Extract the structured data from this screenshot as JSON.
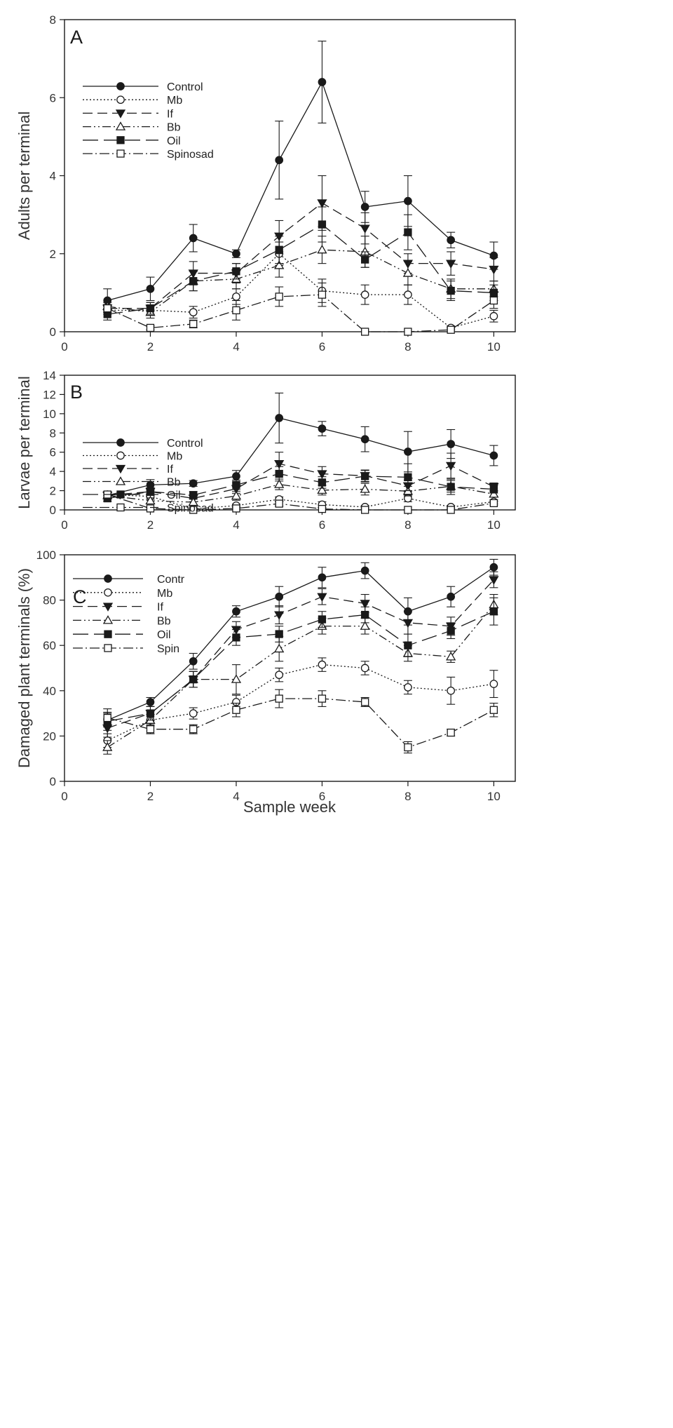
{
  "xlabel": "Sample week",
  "chart_data": [
    {
      "type": "line",
      "panel_label": "A",
      "ylabel": "Adults per terminal",
      "xlim": [
        0,
        10.5
      ],
      "ylim": [
        0,
        8
      ],
      "xticks": [
        0,
        2,
        4,
        6,
        8,
        10
      ],
      "yticks": [
        0,
        2,
        4,
        6,
        8
      ],
      "legend": [
        "Control",
        "Mb",
        "If",
        "Bb",
        "Oil",
        "Spinosad"
      ],
      "x": [
        1,
        2,
        3,
        4,
        5,
        6,
        7,
        8,
        9,
        10
      ],
      "series": [
        {
          "name": "Control",
          "values": [
            0.8,
            1.1,
            2.4,
            2.0,
            4.4,
            6.4,
            3.2,
            3.35,
            2.35,
            1.95
          ],
          "err": [
            0.3,
            0.3,
            0.35,
            0.1,
            1.0,
            1.05,
            0.4,
            0.65,
            0.2,
            0.35
          ]
        },
        {
          "name": "Mb",
          "values": [
            0.55,
            0.55,
            0.5,
            0.9,
            2.0,
            1.05,
            0.95,
            0.95,
            0.1,
            0.4
          ],
          "err": [
            0.1,
            0.1,
            0.15,
            0.2,
            0.3,
            0.3,
            0.25,
            0.25,
            0.05,
            0.15
          ]
        },
        {
          "name": "If",
          "values": [
            0.6,
            0.6,
            1.5,
            1.5,
            2.45,
            3.3,
            2.65,
            1.75,
            1.75,
            1.6
          ],
          "err": [
            0.1,
            0.15,
            0.3,
            0.25,
            0.4,
            0.7,
            0.4,
            0.25,
            0.3,
            0.3
          ]
        },
        {
          "name": "Bb",
          "values": [
            0.65,
            0.5,
            1.3,
            1.35,
            1.7,
            2.1,
            2.05,
            1.5,
            1.1,
            1.1
          ],
          "err": [
            0.1,
            0.15,
            0.25,
            0.25,
            0.3,
            0.35,
            0.4,
            0.3,
            0.25,
            0.2
          ]
        },
        {
          "name": "Oil",
          "values": [
            0.45,
            0.6,
            1.3,
            1.55,
            2.1,
            2.75,
            1.85,
            2.55,
            1.05,
            1.0
          ],
          "err": [
            0.15,
            0.15,
            0.25,
            0.2,
            0.35,
            0.45,
            0.2,
            0.45,
            0.25,
            0.2
          ]
        },
        {
          "name": "Spinosad",
          "values": [
            0.6,
            0.1,
            0.2,
            0.55,
            0.9,
            0.95,
            0.0,
            0.0,
            0.05,
            0.8
          ],
          "err": [
            0.1,
            0.05,
            0.1,
            0.25,
            0.25,
            0.3,
            0.0,
            0.0,
            0.05,
            0.2
          ]
        }
      ]
    },
    {
      "type": "line",
      "panel_label": "B",
      "ylabel": "Larvae per terminal",
      "xlim": [
        0,
        10.5
      ],
      "ylim": [
        0,
        14
      ],
      "xticks": [
        0,
        2,
        4,
        6,
        8,
        10
      ],
      "yticks": [
        0,
        2,
        4,
        6,
        8,
        10,
        12,
        14
      ],
      "legend": [
        "Control",
        "Mb",
        "If",
        "Bb",
        "Oil",
        "Spinosad"
      ],
      "x": [
        1,
        2,
        3,
        4,
        5,
        6,
        7,
        8,
        9,
        10
      ],
      "series": [
        {
          "name": "Control",
          "values": [
            1.5,
            2.6,
            2.75,
            3.5,
            9.55,
            8.45,
            7.35,
            6.05,
            6.85,
            5.65
          ],
          "err": [
            0.35,
            0.55,
            0.3,
            0.6,
            2.6,
            0.75,
            1.3,
            2.1,
            1.5,
            1.05
          ]
        },
        {
          "name": "Mb",
          "values": [
            1.6,
            1.4,
            0.1,
            0.45,
            1.1,
            0.55,
            0.3,
            1.2,
            0.3,
            0.85
          ],
          "err": [
            0.3,
            0.3,
            0.05,
            0.15,
            0.25,
            0.3,
            0.15,
            0.35,
            0.15,
            0.2
          ]
        },
        {
          "name": "If",
          "values": [
            1.5,
            1.9,
            1.2,
            2.2,
            4.8,
            3.75,
            3.55,
            2.5,
            4.6,
            2.4
          ],
          "err": [
            0.3,
            0.4,
            0.35,
            0.5,
            1.2,
            0.75,
            0.6,
            0.6,
            1.3,
            0.4
          ]
        },
        {
          "name": "Bb",
          "values": [
            1.5,
            0.95,
            0.8,
            1.45,
            2.65,
            2.05,
            2.15,
            1.95,
            2.45,
            1.65
          ],
          "err": [
            0.3,
            0.3,
            0.3,
            0.45,
            0.55,
            0.5,
            0.6,
            0.5,
            0.6,
            0.3
          ]
        },
        {
          "name": "Oil",
          "values": [
            1.2,
            1.9,
            1.55,
            2.6,
            3.75,
            2.85,
            3.5,
            3.4,
            2.4,
            2.15
          ],
          "err": [
            0.3,
            0.35,
            0.35,
            0.5,
            0.75,
            0.6,
            0.6,
            1.4,
            0.8,
            0.4
          ]
        },
        {
          "name": "Spinosad",
          "values": [
            1.6,
            0.15,
            0.0,
            0.15,
            0.65,
            0.1,
            0.0,
            0.0,
            0.0,
            0.7
          ],
          "err": [
            0.3,
            0.1,
            0.05,
            0.1,
            0.25,
            0.1,
            0.0,
            0.0,
            0.05,
            0.2
          ]
        }
      ]
    },
    {
      "type": "line",
      "panel_label": "C",
      "ylabel": "Damaged plant terminals (%)",
      "xlim": [
        0,
        10.5
      ],
      "ylim": [
        0,
        100
      ],
      "xticks": [
        0,
        2,
        4,
        6,
        8,
        10
      ],
      "yticks": [
        0,
        20,
        40,
        60,
        80,
        100
      ],
      "legend": [
        "Contr",
        "Mb",
        "If",
        "Bb",
        "Oil",
        "Spin"
      ],
      "x": [
        1,
        2,
        3,
        4,
        5,
        6,
        7,
        8,
        9,
        10
      ],
      "series": [
        {
          "name": "Contr",
          "values": [
            27,
            35,
            53,
            75,
            81.5,
            90,
            93,
            75,
            81.5,
            94.5
          ],
          "err": [
            3,
            2,
            3.5,
            2.5,
            4.5,
            4.5,
            3.5,
            6,
            4.5,
            3.5
          ]
        },
        {
          "name": "Mb",
          "values": [
            18,
            27,
            30,
            35,
            47,
            51.5,
            50,
            41.5,
            40,
            43
          ],
          "err": [
            3,
            2.5,
            2.5,
            3,
            3,
            3,
            3,
            3,
            6,
            6
          ]
        },
        {
          "name": "If",
          "values": [
            23.5,
            30,
            45,
            67,
            73.5,
            81.5,
            78.5,
            70,
            68.5,
            89
          ],
          "err": [
            4,
            3,
            3.5,
            3.5,
            4,
            3.5,
            4,
            5,
            4,
            3.5
          ]
        },
        {
          "name": "Bb",
          "values": [
            15,
            27,
            45,
            45,
            58.5,
            68.5,
            68.5,
            56.5,
            55,
            78
          ],
          "err": [
            3,
            2.5,
            3.5,
            6.5,
            5.5,
            3.5,
            3.5,
            3.5,
            2.5,
            4.5
          ]
        },
        {
          "name": "Oil",
          "values": [
            26.5,
            30,
            45,
            63.5,
            65,
            71.5,
            73.5,
            60,
            66.5,
            75
          ],
          "err": [
            4,
            3,
            3.5,
            3.5,
            3.5,
            3.5,
            3.5,
            5,
            3.5,
            6
          ]
        },
        {
          "name": "Spin",
          "values": [
            28,
            23,
            23,
            31.5,
            36.5,
            36.5,
            35,
            15,
            21.5,
            31.5
          ],
          "err": [
            4,
            2,
            2,
            3,
            4,
            3.5,
            2,
            2.5,
            1.5,
            3
          ]
        }
      ]
    }
  ]
}
